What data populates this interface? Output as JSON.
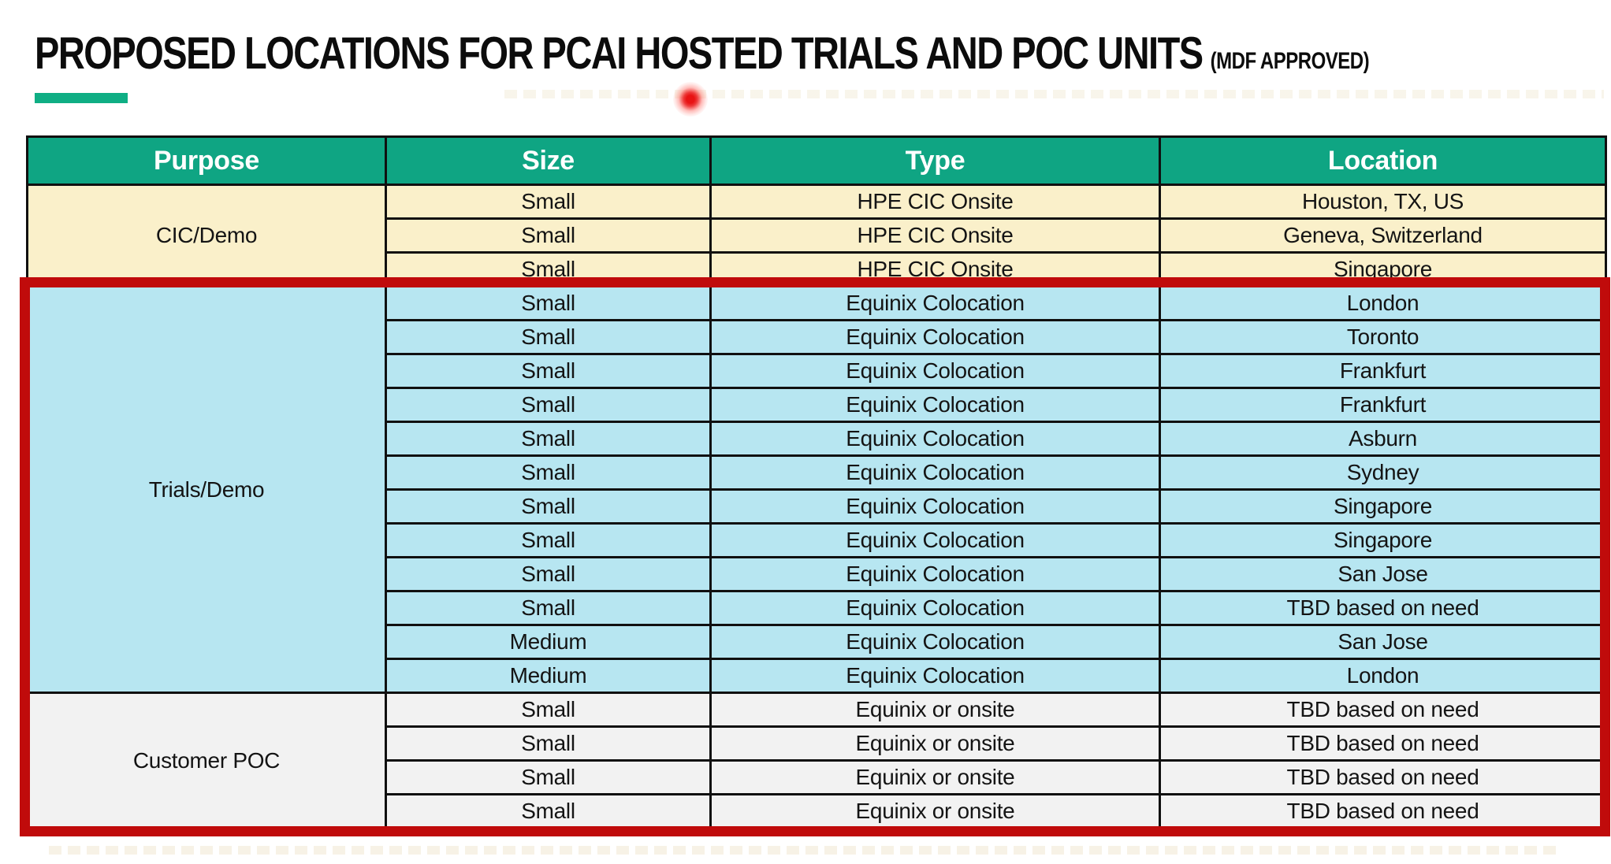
{
  "title": {
    "text": "PROPOSED LOCATIONS FOR PCAI HOSTED TRIALS AND POC UNITS",
    "suffix": "(MDF APPROVED)"
  },
  "colors": {
    "header_bg": "#0FA583",
    "accent_green": "#0FAE84",
    "cic_demo_bg": "#FAF0CA",
    "trials_demo_bg": "#B7E6F1",
    "customer_poc_bg": "#F2F2F2",
    "highlight_border": "#C00B0B",
    "laser_red": "#E81313"
  },
  "table": {
    "columns": [
      "Purpose",
      "Size",
      "Type",
      "Location"
    ],
    "sections": [
      {
        "purpose": "CIC/Demo",
        "bg_key": "cic_demo_bg",
        "highlighted": false,
        "rows": [
          {
            "size": "Small",
            "type": "HPE CIC Onsite",
            "location": "Houston, TX, US"
          },
          {
            "size": "Small",
            "type": "HPE CIC Onsite",
            "location": "Geneva, Switzerland"
          },
          {
            "size": "Small",
            "type": "HPE CIC Onsite",
            "location": "Singapore"
          }
        ]
      },
      {
        "purpose": "Trials/Demo",
        "bg_key": "trials_demo_bg",
        "highlighted": true,
        "rows": [
          {
            "size": "Small",
            "type": "Equinix Colocation",
            "location": "London"
          },
          {
            "size": "Small",
            "type": "Equinix Colocation",
            "location": "Toronto"
          },
          {
            "size": "Small",
            "type": "Equinix Colocation",
            "location": "Frankfurt"
          },
          {
            "size": "Small",
            "type": "Equinix Colocation",
            "location": "Frankfurt"
          },
          {
            "size": "Small",
            "type": "Equinix Colocation",
            "location": "Asburn"
          },
          {
            "size": "Small",
            "type": "Equinix Colocation",
            "location": "Sydney"
          },
          {
            "size": "Small",
            "type": "Equinix Colocation",
            "location": "Singapore"
          },
          {
            "size": "Small",
            "type": "Equinix Colocation",
            "location": "Singapore"
          },
          {
            "size": "Small",
            "type": "Equinix Colocation",
            "location": "San Jose"
          },
          {
            "size": "Small",
            "type": "Equinix Colocation",
            "location": "TBD based on need"
          },
          {
            "size": "Medium",
            "type": "Equinix Colocation",
            "location": "San Jose"
          },
          {
            "size": "Medium",
            "type": "Equinix Colocation",
            "location": "London"
          }
        ]
      },
      {
        "purpose": "Customer POC",
        "bg_key": "customer_poc_bg",
        "highlighted": true,
        "rows": [
          {
            "size": "Small",
            "type": "Equinix or onsite",
            "location": "TBD based on need"
          },
          {
            "size": "Small",
            "type": "Equinix or onsite",
            "location": "TBD based on need"
          },
          {
            "size": "Small",
            "type": "Equinix or onsite",
            "location": "TBD based on need"
          },
          {
            "size": "Small",
            "type": "Equinix or onsite",
            "location": "TBD based on need"
          }
        ]
      }
    ]
  }
}
